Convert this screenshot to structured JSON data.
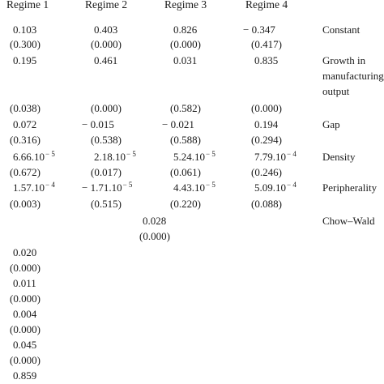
{
  "headers": [
    "Regime 1",
    "Regime 2",
    "Regime 3",
    "Regime 4"
  ],
  "rows": [
    {
      "label": "Constant",
      "values": [
        "0.103",
        "0.403",
        "0.826",
        "− 0.347"
      ]
    },
    {
      "values": [
        "(0.300)",
        "(0.000)",
        "(0.000)",
        "(0.417)"
      ]
    },
    {
      "label_lines": [
        "Growth in",
        "manufacturing",
        "output"
      ],
      "values": [
        "0.195",
        "0.461",
        "0.031",
        "0.835"
      ]
    },
    {
      "values": [
        "(0.038)",
        "(0.000)",
        "(0.582)",
        "(0.000)"
      ]
    },
    {
      "label": "Gap",
      "values": [
        "0.072",
        "− 0.015",
        "− 0.021",
        "0.194"
      ]
    },
    {
      "values": [
        "(0.316)",
        "(0.538)",
        "(0.588)",
        "(0.294)"
      ]
    },
    {
      "label": "Density",
      "values": [
        {
          "base": "6.66.10",
          "exp": "− 5"
        },
        {
          "base": "2.18.10",
          "exp": "− 5"
        },
        {
          "base": "5.24.10",
          "exp": "− 5"
        },
        {
          "base": "7.79.10",
          "exp": "− 4"
        }
      ]
    },
    {
      "values": [
        "(0.672)",
        "(0.017)",
        "(0.061)",
        "(0.246)"
      ]
    },
    {
      "label": "Peripherality",
      "values": [
        {
          "base": "1.57.10",
          "exp": "− 4"
        },
        {
          "base": "− 1.71.10",
          "exp": "− 5"
        },
        {
          "base": "4.43.10",
          "exp": "− 5"
        },
        {
          "base": "5.09.10",
          "exp": "− 4"
        }
      ]
    },
    {
      "values": [
        "(0.003)",
        "(0.515)",
        "(0.220)",
        "(0.088)"
      ]
    }
  ],
  "chow_wald": {
    "label": "Chow–Wald",
    "value": "0.028",
    "pvalue": "(0.000)"
  },
  "extra_column": [
    "0.020",
    "(0.000)",
    "0.011",
    "(0.000)",
    "0.004",
    "(0.000)",
    "0.045",
    "(0.000)",
    "0.859"
  ]
}
